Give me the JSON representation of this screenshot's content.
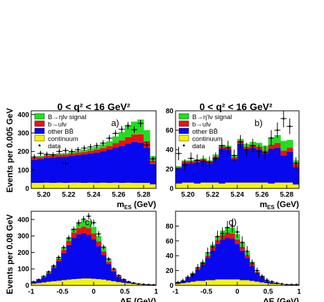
{
  "figure": {
    "ylabel_top": "Events per 0.005 GeV",
    "ylabel_bottom": "Events per 0.08 GeV",
    "title_left": "0 < q² < 16 GeV²",
    "title_right": "0 < q² < 16 GeV²"
  },
  "colors": {
    "signal": "#22dd22",
    "b_ulnu": "#ee1111",
    "other_bb": "#0808ee",
    "continuum": "#f4f400",
    "data": "#000000",
    "axis": "#000000"
  },
  "chart_data": [
    {
      "panel": "a)",
      "type": "stacked_histogram",
      "title": "0 < q² < 16 GeV²",
      "xlabel": "m_ES (GeV)",
      "ylabel": "Events per 0.005 GeV",
      "xlim": [
        5.19,
        5.29
      ],
      "ylim": [
        0,
        420
      ],
      "xticks": [
        5.2,
        5.22,
        5.24,
        5.26,
        5.28
      ],
      "xtick_labels": [
        "5.20",
        "5.22",
        "5.24",
        "5.26",
        "5.28"
      ],
      "yticks": [
        0,
        100,
        200,
        300,
        400
      ],
      "legend": [
        "B→ηlν signal",
        "b→ulν",
        "other BB̄",
        "continuum",
        "data"
      ],
      "x": [
        5.1925,
        5.1975,
        5.2025,
        5.2075,
        5.2125,
        5.2175,
        5.2225,
        5.2275,
        5.2325,
        5.2375,
        5.2425,
        5.2475,
        5.2525,
        5.2575,
        5.2625,
        5.2675,
        5.2725,
        5.2775,
        5.2825,
        5.2875
      ],
      "series": [
        {
          "name": "continuum",
          "values": [
            30,
            30,
            31,
            30,
            31,
            30,
            31,
            31,
            30,
            31,
            30,
            31,
            30,
            31,
            30,
            31,
            30,
            30,
            30,
            22
          ]
        },
        {
          "name": "other BB̄",
          "values": [
            125,
            130,
            135,
            138,
            140,
            142,
            145,
            150,
            154,
            158,
            164,
            170,
            180,
            190,
            200,
            212,
            222,
            218,
            190,
            110
          ]
        },
        {
          "name": "b→ulν",
          "values": [
            10,
            10,
            11,
            11,
            12,
            12,
            13,
            13,
            14,
            15,
            16,
            18,
            20,
            25,
            30,
            35,
            40,
            45,
            35,
            18
          ]
        },
        {
          "name": "B→ηlν signal",
          "values": [
            5,
            6,
            6,
            7,
            7,
            8,
            9,
            10,
            12,
            14,
            16,
            20,
            25,
            35,
            45,
            60,
            70,
            80,
            60,
            25
          ]
        }
      ],
      "data_points": {
        "name": "data",
        "y": [
          170,
          190,
          185,
          182,
          200,
          205,
          200,
          210,
          218,
          225,
          232,
          245,
          272,
          298,
          320,
          340,
          318,
          352,
          235,
          160
        ],
        "yerr": [
          14,
          14,
          14,
          14,
          15,
          15,
          15,
          15,
          15,
          16,
          16,
          16,
          17,
          18,
          18,
          19,
          18,
          19,
          16,
          13
        ]
      },
      "outlier_point": {
        "x": 5.2175,
        "y": 135,
        "yerr": 12
      }
    },
    {
      "panel": "b)",
      "type": "stacked_histogram",
      "title": "0 < q² < 16 GeV²",
      "xlabel": "m_ES (GeV)",
      "ylabel": "",
      "xlim": [
        5.19,
        5.29
      ],
      "ylim": [
        0,
        80
      ],
      "xticks": [
        5.2,
        5.22,
        5.24,
        5.26,
        5.28
      ],
      "xtick_labels": [
        "5.20",
        "5.22",
        "5.24",
        "5.26",
        "5.28"
      ],
      "yticks": [
        0,
        20,
        40,
        60,
        80
      ],
      "legend": [
        "B→η'lν signal",
        "b→ulν",
        "other BB̄",
        "continuum",
        "data"
      ],
      "x": [
        5.1925,
        5.1975,
        5.2025,
        5.2075,
        5.2125,
        5.2175,
        5.2225,
        5.2275,
        5.2325,
        5.2375,
        5.2425,
        5.2475,
        5.2525,
        5.2575,
        5.2625,
        5.2675,
        5.2725,
        5.2775,
        5.2825,
        5.2875
      ],
      "series": [
        {
          "name": "continuum",
          "values": [
            5,
            6,
            6,
            5,
            6,
            6,
            6,
            5,
            6,
            6,
            6,
            6,
            6,
            6,
            6,
            5,
            6,
            6,
            6,
            4
          ]
        },
        {
          "name": "other BB̄",
          "values": [
            16,
            20,
            20,
            22,
            22,
            20,
            25,
            36,
            34,
            24,
            40,
            34,
            36,
            34,
            30,
            36,
            36,
            28,
            32,
            18
          ]
        },
        {
          "name": "b→ulν",
          "values": [
            1,
            2,
            2,
            2,
            2,
            2,
            2,
            2,
            2,
            2,
            3,
            3,
            3,
            3,
            3,
            4,
            5,
            5,
            4,
            3
          ]
        },
        {
          "name": "B→η'lν signal",
          "values": [
            1,
            1,
            1,
            1,
            1,
            1,
            2,
            2,
            2,
            2,
            2,
            3,
            3,
            4,
            5,
            7,
            8,
            10,
            8,
            4
          ]
        }
      ],
      "data_points": {
        "name": "data",
        "y": [
          36,
          24,
          31,
          29,
          28,
          27,
          31,
          44,
          42,
          34,
          48,
          40,
          44,
          38,
          37,
          52,
          60,
          72,
          64,
          26
        ],
        "yerr": [
          7,
          6,
          6,
          6,
          6,
          6,
          6,
          7,
          7,
          6,
          7,
          7,
          7,
          7,
          7,
          8,
          8,
          9,
          8,
          6
        ]
      }
    },
    {
      "panel": "c)",
      "type": "stacked_histogram",
      "title": "",
      "xlabel": "ΔE (GeV)",
      "ylabel": "Events per 0.08 GeV",
      "xlim": [
        -1,
        1
      ],
      "ylim": [
        0,
        450
      ],
      "xticks": [
        -1,
        -0.5,
        0,
        0.5,
        1
      ],
      "xtick_labels": [
        "-1",
        "-0.5",
        "0",
        "0.5",
        "1"
      ],
      "yticks": [
        0,
        100,
        200,
        300,
        400
      ],
      "legend": [],
      "x": [
        -0.96,
        -0.88,
        -0.8,
        -0.72,
        -0.64,
        -0.56,
        -0.48,
        -0.4,
        -0.32,
        -0.24,
        -0.16,
        -0.08,
        0.0,
        0.08,
        0.16,
        0.24,
        0.32,
        0.4,
        0.48,
        0.56,
        0.64,
        0.72,
        0.8,
        0.88,
        0.96
      ],
      "series": [
        {
          "name": "continuum",
          "values": [
            10,
            14,
            18,
            22,
            25,
            28,
            32,
            35,
            38,
            40,
            42,
            42,
            40,
            38,
            35,
            30,
            25,
            20,
            16,
            12,
            9,
            7,
            5,
            4,
            3
          ]
        },
        {
          "name": "other BB̄",
          "values": [
            10,
            18,
            30,
            50,
            80,
            120,
            165,
            210,
            250,
            270,
            275,
            265,
            240,
            200,
            150,
            100,
            60,
            32,
            16,
            8,
            4,
            2,
            1,
            0,
            0
          ]
        },
        {
          "name": "b→ulν",
          "values": [
            1,
            2,
            3,
            5,
            8,
            12,
            18,
            25,
            32,
            38,
            40,
            40,
            36,
            30,
            22,
            14,
            8,
            4,
            2,
            1,
            0,
            0,
            0,
            0,
            0
          ]
        },
        {
          "name": "B→ηlν signal",
          "values": [
            0,
            1,
            2,
            3,
            5,
            8,
            12,
            18,
            25,
            32,
            40,
            45,
            40,
            32,
            22,
            14,
            8,
            4,
            2,
            1,
            0,
            0,
            0,
            0,
            0
          ]
        }
      ],
      "data_points": {
        "name": "data",
        "y": [
          22,
          35,
          55,
          82,
          118,
          170,
          230,
          288,
          340,
          380,
          402,
          420,
          380,
          312,
          232,
          160,
          100,
          60,
          36,
          22,
          14,
          9,
          6,
          4,
          3
        ],
        "yerr": [
          5,
          6,
          7,
          9,
          11,
          13,
          15,
          17,
          18,
          19,
          20,
          20,
          19,
          18,
          15,
          13,
          10,
          8,
          6,
          5,
          4,
          3,
          2,
          2,
          2
        ]
      }
    },
    {
      "panel": "d)",
      "type": "stacked_histogram",
      "title": "",
      "xlabel": "ΔE (GeV)",
      "ylabel": "",
      "xlim": [
        -1,
        1
      ],
      "ylim": [
        0,
        100
      ],
      "xticks": [
        -1,
        -0.5,
        0,
        0.5,
        1
      ],
      "xtick_labels": [
        "-1",
        "-0.5",
        "0",
        "0.5",
        "1"
      ],
      "yticks": [
        0,
        20,
        40,
        60,
        80
      ],
      "legend": [],
      "x": [
        -0.96,
        -0.88,
        -0.8,
        -0.72,
        -0.64,
        -0.56,
        -0.48,
        -0.4,
        -0.32,
        -0.24,
        -0.16,
        -0.08,
        0.0,
        0.08,
        0.16,
        0.24,
        0.32,
        0.4,
        0.48,
        0.56,
        0.64,
        0.72,
        0.8,
        0.88,
        0.96
      ],
      "series": [
        {
          "name": "continuum",
          "values": [
            2,
            3,
            4,
            5,
            6,
            6,
            7,
            7,
            8,
            8,
            8,
            8,
            8,
            7,
            7,
            6,
            5,
            4,
            3,
            2,
            2,
            1,
            1,
            1,
            1
          ]
        },
        {
          "name": "other BB̄",
          "values": [
            2,
            3,
            6,
            10,
            15,
            22,
            30,
            40,
            48,
            54,
            56,
            55,
            48,
            40,
            30,
            20,
            12,
            7,
            3,
            2,
            1,
            0,
            0,
            0,
            0
          ]
        },
        {
          "name": "b→ulν",
          "values": [
            0,
            0,
            1,
            1,
            2,
            2,
            3,
            4,
            5,
            6,
            7,
            7,
            6,
            5,
            4,
            3,
            1,
            1,
            0,
            0,
            0,
            0,
            0,
            0,
            0
          ]
        },
        {
          "name": "B→η'lν signal",
          "values": [
            0,
            0,
            0,
            1,
            1,
            2,
            3,
            4,
            5,
            6,
            7,
            8,
            7,
            6,
            4,
            3,
            1,
            1,
            0,
            0,
            0,
            0,
            0,
            0,
            0
          ]
        }
      ],
      "data_points": {
        "name": "data",
        "y": [
          4,
          6,
          11,
          15,
          24,
          30,
          44,
          52,
          66,
          70,
          78,
          80,
          72,
          58,
          46,
          30,
          20,
          12,
          7,
          5,
          3,
          2,
          1,
          1,
          1
        ],
        "yerr": [
          2,
          3,
          3,
          4,
          5,
          5,
          7,
          7,
          8,
          8,
          9,
          9,
          8,
          8,
          7,
          5,
          4,
          3,
          3,
          2,
          2,
          1,
          1,
          1,
          1
        ]
      }
    }
  ]
}
